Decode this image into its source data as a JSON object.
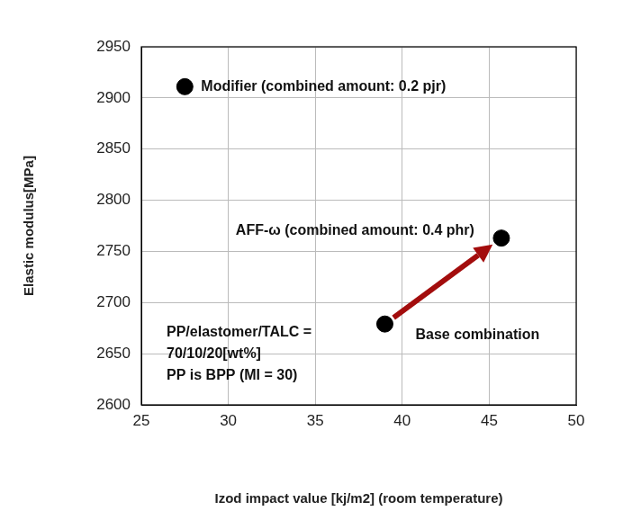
{
  "chart_data": {
    "type": "scatter",
    "x_label": "Izod impact value [kj/m2] (room temperature)",
    "y_label": "Elastic modulus[MPa]",
    "x": [
      27.5,
      39,
      45.7
    ],
    "values": [
      2911,
      2679,
      2763
    ],
    "point_labels": [
      "Modifier (combined amount: 0.2 pjr)",
      "Base combination",
      "AFF-ω (combined amount: 0.4 phr)"
    ],
    "color": "#000000",
    "marker": "circle",
    "xlim": [
      25,
      50
    ],
    "xticks": [
      25,
      30,
      35,
      40,
      45,
      50
    ],
    "ylim": [
      2600,
      2950
    ],
    "yticks": [
      2600,
      2650,
      2700,
      2750,
      2800,
      2850,
      2900,
      2950
    ],
    "grid": true,
    "arrow": {
      "from": "Base combination",
      "to": "AFF-ω (combined amount: 0.4 phr)",
      "color": "#a30d0d"
    },
    "note": [
      "PP/elastomer/TALC =",
      "70/10/20[wt%]",
      "PP is BPP (MI = 30)"
    ]
  }
}
